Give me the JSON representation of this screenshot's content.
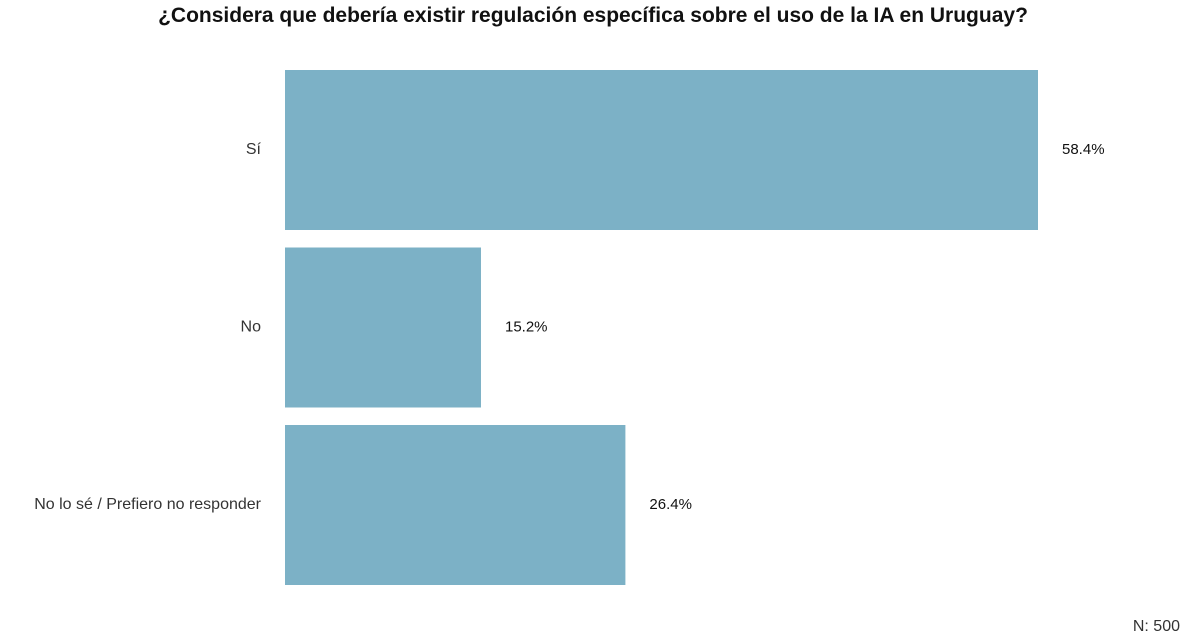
{
  "chart_data": {
    "type": "bar",
    "orientation": "horizontal",
    "title": "¿Considera que debería existir regulación específica sobre el uso de la IA en Uruguay?",
    "categories": [
      "Sí",
      "No",
      "No lo sé / Prefiero no responder"
    ],
    "values": [
      58.4,
      15.2,
      26.4
    ],
    "value_labels": [
      "58.4%",
      "15.2%",
      "26.4%"
    ],
    "xlim": [
      0,
      58.4
    ],
    "grid": false,
    "colors": {
      "bar": "#7cb1c6"
    }
  },
  "footer": {
    "note": "N: 500"
  }
}
